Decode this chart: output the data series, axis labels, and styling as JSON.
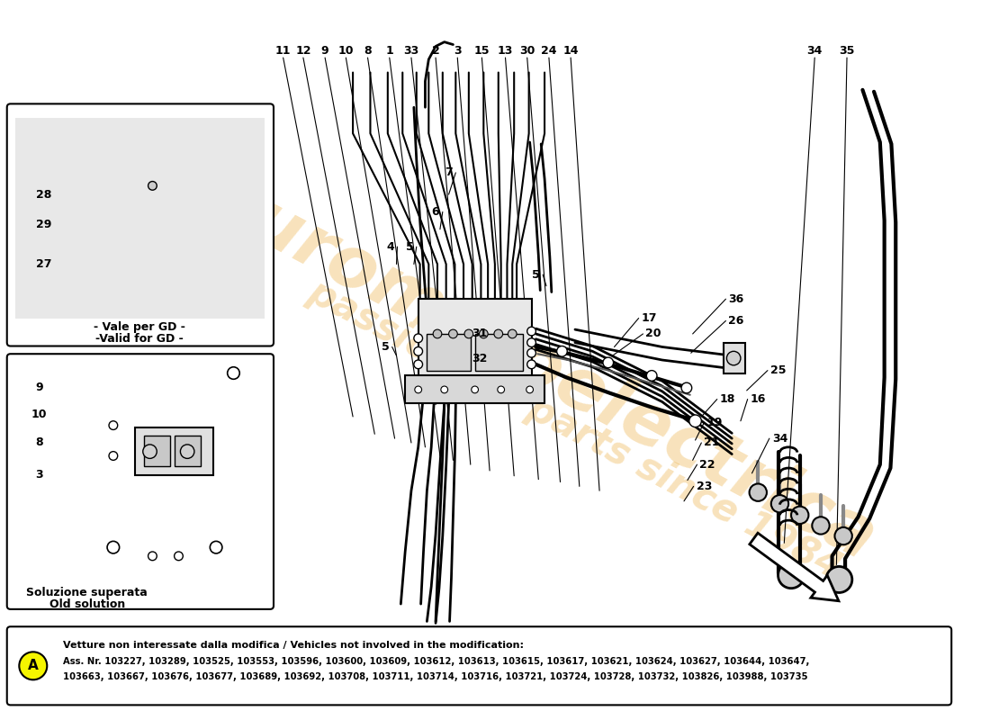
{
  "bg_color": "#ffffff",
  "watermark_color": "#e8a020",
  "watermark_alpha": 0.3,
  "bottom_note_title": "Vetture non interessate dalla modifica / Vehicles not involved in the modification:",
  "bottom_note_line1": "Ass. Nr. 103227, 103289, 103525, 103553, 103596, 103600, 103609, 103612, 103613, 103615, 103617, 103621, 103624, 103627, 103644, 103647,",
  "bottom_note_line2": "103663, 103667, 103676, 103677, 103689, 103692, 103708, 103711, 103714, 103716, 103721, 103724, 103728, 103732, 103826, 103988, 103735",
  "label_A_color": "#f5f500",
  "inset1_caption1": "- Vale per GD -",
  "inset1_caption2": "-Valid for GD -",
  "inset2_caption1": "Soluzione superata",
  "inset2_caption2": "Old solution",
  "top_labels": [
    [
      "11",
      325,
      755,
      405,
      330
    ],
    [
      "12",
      348,
      755,
      430,
      310
    ],
    [
      "9",
      373,
      755,
      453,
      305
    ],
    [
      "10",
      397,
      755,
      472,
      300
    ],
    [
      "8",
      422,
      755,
      488,
      295
    ],
    [
      "1",
      447,
      755,
      505,
      285
    ],
    [
      "33",
      472,
      755,
      520,
      280
    ],
    [
      "2",
      500,
      755,
      540,
      275
    ],
    [
      "3",
      525,
      755,
      562,
      268
    ],
    [
      "15",
      553,
      755,
      590,
      262
    ],
    [
      "13",
      580,
      755,
      618,
      258
    ],
    [
      "30",
      605,
      755,
      643,
      255
    ],
    [
      "24",
      630,
      755,
      665,
      250
    ],
    [
      "14",
      655,
      755,
      688,
      245
    ]
  ],
  "top_right_labels": [
    [
      "34",
      935,
      755,
      900,
      185
    ],
    [
      "35",
      972,
      755,
      960,
      160
    ]
  ],
  "right_labels": [
    [
      "36",
      845,
      470,
      790,
      430
    ],
    [
      "26",
      845,
      445,
      788,
      408
    ],
    [
      "34",
      895,
      310,
      858,
      270
    ],
    [
      "25",
      893,
      388,
      852,
      365
    ],
    [
      "17",
      745,
      448,
      700,
      415
    ],
    [
      "20",
      750,
      430,
      698,
      405
    ],
    [
      "18",
      835,
      355,
      800,
      335
    ],
    [
      "16",
      870,
      355,
      845,
      330
    ],
    [
      "19",
      820,
      328,
      793,
      308
    ],
    [
      "21",
      817,
      305,
      790,
      285
    ],
    [
      "22",
      812,
      280,
      784,
      262
    ],
    [
      "23",
      808,
      255,
      780,
      238
    ]
  ],
  "center_labels": [
    [
      "5",
      442,
      415,
      460,
      405
    ],
    [
      "31",
      550,
      430,
      568,
      418
    ],
    [
      "32",
      550,
      402,
      565,
      392
    ],
    [
      "4",
      448,
      530,
      460,
      510
    ],
    [
      "5",
      470,
      530,
      480,
      510
    ],
    [
      "6",
      500,
      570,
      510,
      550
    ],
    [
      "7",
      515,
      615,
      520,
      590
    ],
    [
      "5",
      615,
      498,
      632,
      485
    ]
  ],
  "inset1_labels": [
    [
      "28",
      50,
      590,
      120,
      570
    ],
    [
      "29",
      50,
      555,
      118,
      545
    ],
    [
      "27",
      50,
      510,
      108,
      500
    ]
  ],
  "inset2_labels": [
    [
      "9",
      45,
      368,
      115,
      330
    ],
    [
      "10",
      45,
      337,
      112,
      310
    ],
    [
      "8",
      45,
      306,
      110,
      285
    ],
    [
      "3",
      45,
      268,
      108,
      260
    ]
  ]
}
